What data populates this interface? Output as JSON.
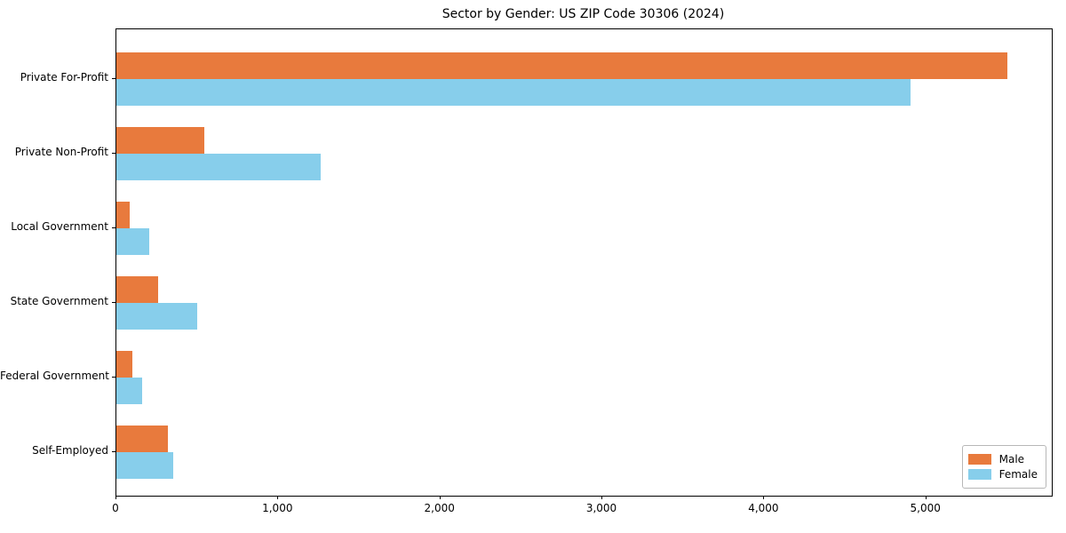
{
  "chart_data": {
    "type": "bar",
    "orientation": "horizontal",
    "title": "Sector by Gender: US ZIP Code 30306 (2024)",
    "categories": [
      "Private For-Profit",
      "Private Non-Profit",
      "Local Government",
      "State Government",
      "Federal Government",
      "Self-Employed"
    ],
    "series": [
      {
        "name": "Male",
        "color": "#E87A3D",
        "values": [
          5500,
          540,
          80,
          260,
          100,
          320
        ]
      },
      {
        "name": "Female",
        "color": "#87CEEB",
        "values": [
          4900,
          1260,
          200,
          500,
          160,
          350
        ]
      }
    ],
    "xlabel": "",
    "ylabel": "",
    "xlim": [
      0,
      5775
    ],
    "xticks": {
      "values": [
        0,
        1000,
        2000,
        3000,
        4000,
        5000
      ],
      "labels": [
        "0",
        "1,000",
        "2,000",
        "3,000",
        "4,000",
        "5,000"
      ]
    },
    "grid": false,
    "legend": {
      "position": "lower right"
    }
  }
}
